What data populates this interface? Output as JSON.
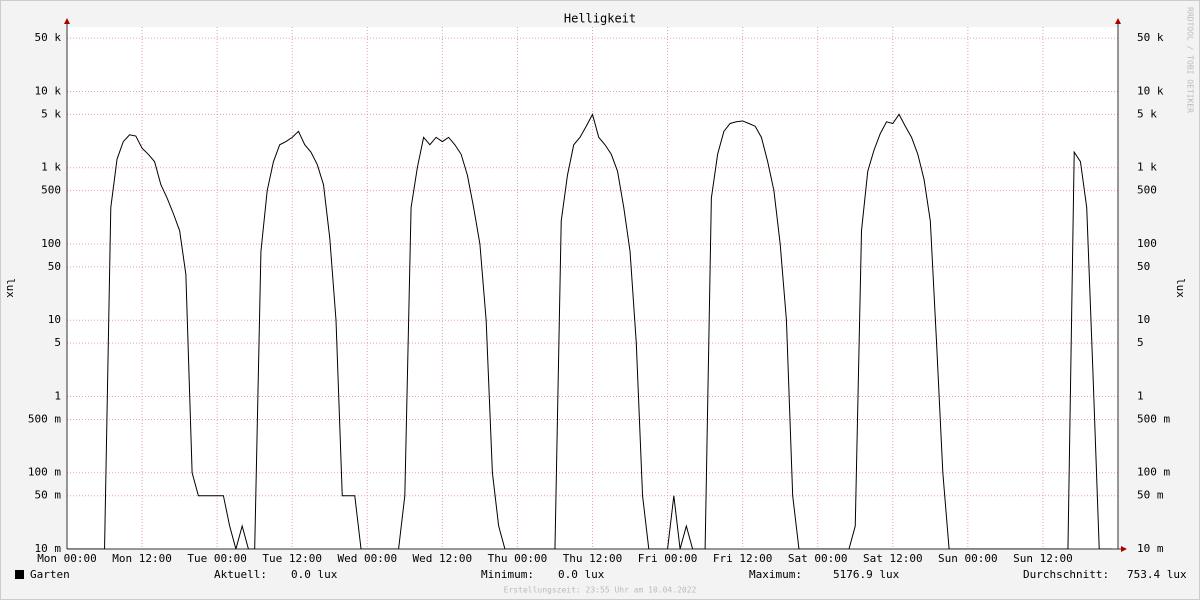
{
  "chart_data": {
    "type": "line",
    "title": "Helligkeit",
    "y_label": "lux",
    "log_scale": true,
    "grid": true,
    "side_label": "RRDTOOL / TOBI OETIKER",
    "footer": "Erstellungszeit: 23:55 Uhr am 10.04.2022",
    "xlim": [
      0,
      168
    ],
    "xticks": [
      {
        "value": 0,
        "label": "Mon 00:00"
      },
      {
        "value": 12,
        "label": "Mon 12:00"
      },
      {
        "value": 24,
        "label": "Tue 00:00"
      },
      {
        "value": 36,
        "label": "Tue 12:00"
      },
      {
        "value": 48,
        "label": "Wed 00:00"
      },
      {
        "value": 60,
        "label": "Wed 12:00"
      },
      {
        "value": 72,
        "label": "Thu 00:00"
      },
      {
        "value": 84,
        "label": "Thu 12:00"
      },
      {
        "value": 96,
        "label": "Fri 00:00"
      },
      {
        "value": 108,
        "label": "Fri 12:00"
      },
      {
        "value": 120,
        "label": "Sat 00:00"
      },
      {
        "value": 132,
        "label": "Sat 12:00"
      },
      {
        "value": 144,
        "label": "Sun 00:00"
      },
      {
        "value": 156,
        "label": "Sun 12:00"
      }
    ],
    "ylim": [
      0.01,
      70000
    ],
    "yticks": [
      {
        "value": 0.01,
        "label": "10 m"
      },
      {
        "value": 0.05,
        "label": "50 m"
      },
      {
        "value": 0.1,
        "label": "100 m"
      },
      {
        "value": 0.5,
        "label": "500 m"
      },
      1,
      5,
      10,
      50,
      100,
      500,
      {
        "value": 1000,
        "label": "1 k"
      },
      {
        "value": 5000,
        "label": "5 k"
      },
      {
        "value": 10000,
        "label": "10 k"
      },
      {
        "value": 50000,
        "label": "50 k"
      }
    ],
    "x": [
      0,
      1,
      2,
      3,
      4,
      5,
      6,
      7,
      8,
      9,
      10,
      11,
      12,
      13,
      14,
      15,
      16,
      17,
      18,
      19,
      20,
      21,
      22,
      23,
      24,
      25,
      26,
      27,
      28,
      29,
      30,
      31,
      32,
      33,
      34,
      35,
      36,
      37,
      38,
      39,
      40,
      41,
      42,
      43,
      44,
      45,
      46,
      47,
      48,
      49,
      50,
      51,
      52,
      53,
      54,
      55,
      56,
      57,
      58,
      59,
      60,
      61,
      62,
      63,
      64,
      65,
      66,
      67,
      68,
      69,
      70,
      71,
      72,
      73,
      74,
      75,
      76,
      77,
      78,
      79,
      80,
      81,
      82,
      83,
      84,
      85,
      86,
      87,
      88,
      89,
      90,
      91,
      92,
      93,
      94,
      95,
      96,
      97,
      98,
      99,
      100,
      101,
      102,
      103,
      104,
      105,
      106,
      107,
      108,
      109,
      110,
      111,
      112,
      113,
      114,
      115,
      116,
      117,
      118,
      119,
      120,
      121,
      122,
      123,
      124,
      125,
      126,
      127,
      128,
      129,
      130,
      131,
      132,
      133,
      134,
      135,
      136,
      137,
      138,
      139,
      140,
      141,
      142,
      143,
      144,
      145,
      146,
      147,
      148,
      149,
      150,
      151,
      152,
      153,
      154,
      155,
      156,
      157,
      158,
      159,
      160,
      161,
      162,
      163,
      164,
      165,
      166,
      167
    ],
    "series": [
      {
        "name": "Garten",
        "color": "#000000",
        "values": [
          0,
          0,
          0,
          0,
          0,
          0,
          0.01,
          300,
          1300,
          2200,
          2700,
          2600,
          1800,
          1500,
          1200,
          600,
          400,
          250,
          150,
          40,
          0.1,
          0.05,
          0.05,
          0.05,
          0.05,
          0.05,
          0.02,
          0,
          0.02,
          0,
          0.01,
          80,
          500,
          1200,
          2000,
          2200,
          2500,
          3000,
          2000,
          1600,
          1100,
          600,
          120,
          10,
          0.05,
          0.05,
          0.05,
          0,
          0,
          0,
          0,
          0,
          0,
          0,
          0.05,
          300,
          1000,
          2500,
          2000,
          2500,
          2200,
          2500,
          2000,
          1500,
          800,
          300,
          100,
          10,
          0.1,
          0.02,
          0,
          0,
          0,
          0,
          0,
          0,
          0,
          0,
          0.01,
          200,
          800,
          2000,
          2500,
          3500,
          5000,
          2500,
          2000,
          1500,
          900,
          300,
          80,
          5,
          0.05,
          0,
          0,
          0,
          0,
          0.05,
          0,
          0.02,
          0,
          0,
          0.01,
          400,
          1500,
          3000,
          3800,
          4000,
          4100,
          3800,
          3500,
          2500,
          1200,
          500,
          100,
          10,
          0.05,
          0,
          0,
          0,
          0,
          0,
          0,
          0,
          0,
          0,
          0.02,
          150,
          900,
          1700,
          2800,
          4000,
          3800,
          5000,
          3500,
          2500,
          1500,
          700,
          200,
          5,
          0.1,
          0,
          0,
          0,
          0,
          0,
          0,
          0,
          0,
          0,
          0,
          0,
          0,
          0,
          0,
          0,
          0,
          0,
          0,
          0,
          0,
          1600,
          1200,
          300,
          2,
          0,
          0,
          0
        ]
      }
    ],
    "legend_stats": [
      {
        "label": "Aktuell:",
        "value": "0.0 lux"
      },
      {
        "label": "Minimum:",
        "value": "0.0 lux"
      },
      {
        "label": "Maximum:",
        "value": "5176.9 lux"
      },
      {
        "label": "Durchschnitt:",
        "value": "753.4 lux"
      }
    ]
  }
}
